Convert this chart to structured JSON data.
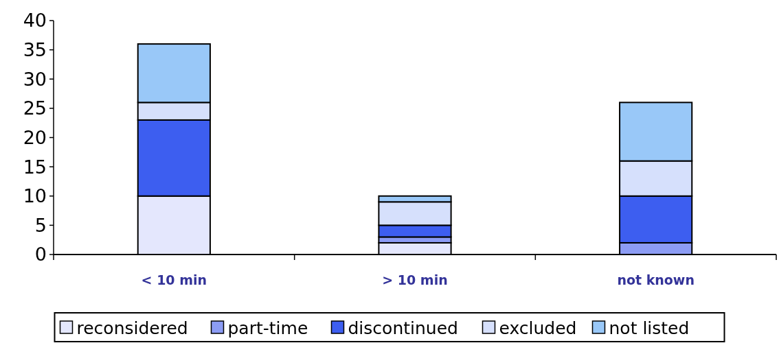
{
  "chart_data": {
    "type": "bar",
    "stacked": true,
    "categories": [
      "< 10 min",
      "> 10 min",
      "not known"
    ],
    "series": [
      {
        "name": "reconsidered",
        "color": "#e4e7fd",
        "values": [
          10,
          2,
          0
        ]
      },
      {
        "name": "part-time",
        "color": "#8c9cf4",
        "values": [
          0,
          1,
          2
        ]
      },
      {
        "name": "discontinued",
        "color": "#3d5ef0",
        "values": [
          13,
          2,
          8
        ]
      },
      {
        "name": "excluded",
        "color": "#d6e0fc",
        "values": [
          3,
          4,
          6
        ]
      },
      {
        "name": "not listed",
        "color": "#99c8f8",
        "values": [
          10,
          1,
          10
        ]
      }
    ],
    "ylim": [
      0,
      40
    ],
    "yticks": [
      0,
      5,
      10,
      15,
      20,
      25,
      30,
      35,
      40
    ],
    "grid": false,
    "legend": "bottom"
  }
}
